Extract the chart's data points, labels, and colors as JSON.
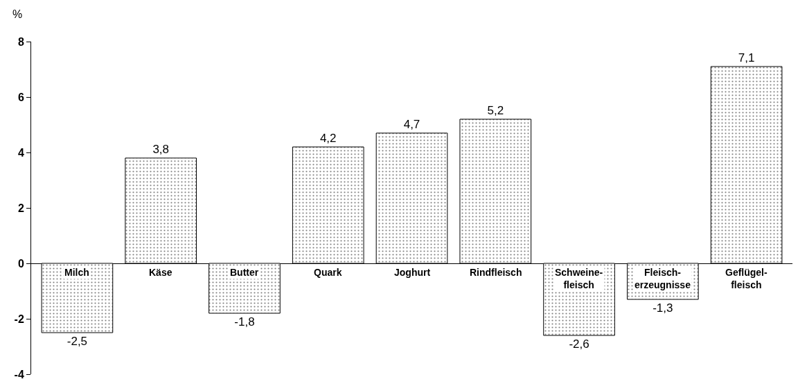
{
  "chart_data": {
    "type": "bar",
    "ylabel": "%",
    "categories": [
      "Milch",
      "Käse",
      "Butter",
      "Quark",
      "Joghurt",
      "Rindfleisch",
      "Schweine-\nfleisch",
      "Fleisch-\nerzeugnisse",
      "Geflügel-\nfleisch"
    ],
    "values": [
      -2.5,
      3.8,
      -1.8,
      4.2,
      4.7,
      5.2,
      -2.6,
      -1.3,
      7.1
    ],
    "value_labels": [
      "-2,5",
      "3,8",
      "-1,8",
      "4,2",
      "4,7",
      "5,2",
      "-2,6",
      "-1,3",
      "7,1"
    ],
    "color": "#000000",
    "ylim": [
      -4,
      8
    ],
    "yticks": [
      -4,
      -2,
      0,
      2,
      4,
      6,
      8
    ]
  }
}
